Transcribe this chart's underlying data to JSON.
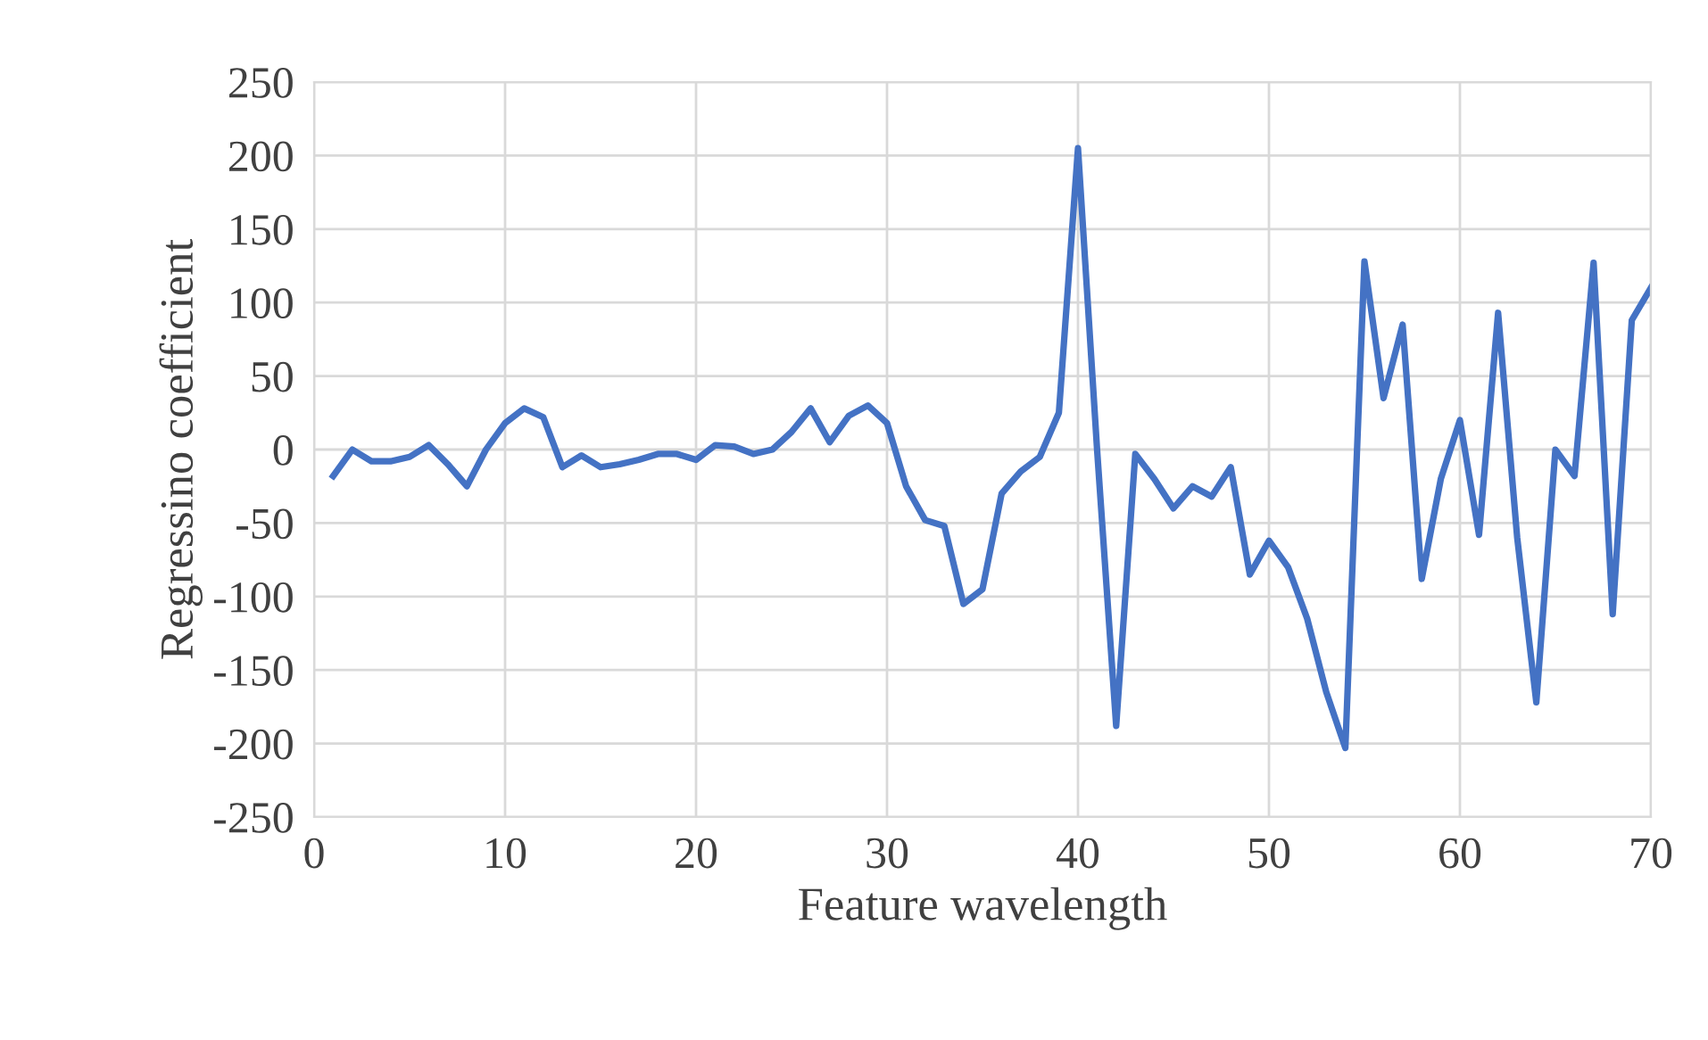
{
  "chart_data": {
    "type": "line",
    "xlabel": "Feature wavelength",
    "ylabel": "Regressino coefficient",
    "x": [
      1,
      2,
      3,
      4,
      5,
      6,
      7,
      8,
      9,
      10,
      11,
      12,
      13,
      14,
      15,
      16,
      17,
      18,
      19,
      20,
      21,
      22,
      23,
      24,
      25,
      26,
      27,
      28,
      29,
      30,
      31,
      32,
      33,
      34,
      35,
      36,
      37,
      38,
      39,
      40,
      41,
      42,
      43,
      44,
      45,
      46,
      47,
      48,
      49,
      50,
      51,
      52,
      53,
      54,
      55,
      56,
      57,
      58,
      59,
      60,
      61,
      62,
      63,
      64,
      65,
      66,
      67,
      68,
      69,
      70
    ],
    "series": [
      {
        "color": "#4472c4",
        "values": [
          -18,
          0,
          -8,
          -8,
          -5,
          3,
          -10,
          -25,
          0,
          18,
          28,
          22,
          -12,
          -4,
          -12,
          -10,
          -7,
          -3,
          -3,
          -7,
          3,
          2,
          -3,
          0,
          12,
          28,
          5,
          23,
          30,
          18,
          -25,
          -48,
          -52,
          -105,
          -95,
          -30,
          -15,
          -5,
          25,
          205,
          0,
          -188,
          -3,
          -20,
          -40,
          -25,
          -32,
          -12,
          -85,
          -62,
          -80,
          -115,
          -165,
          -203,
          128,
          35,
          85,
          -88,
          -20,
          20,
          -58,
          93,
          -60,
          -172,
          0,
          -18,
          127,
          -112,
          88,
          110
        ]
      }
    ],
    "xlim": [
      0,
      70
    ],
    "xticks": [
      0,
      10,
      20,
      30,
      40,
      50,
      60,
      70
    ],
    "ylim": [
      -250,
      250
    ],
    "yticks": [
      -250,
      -200,
      -150,
      -100,
      -50,
      0,
      50,
      100,
      150,
      200,
      250
    ],
    "grid": true,
    "marker": "none",
    "line_style": "solid"
  }
}
